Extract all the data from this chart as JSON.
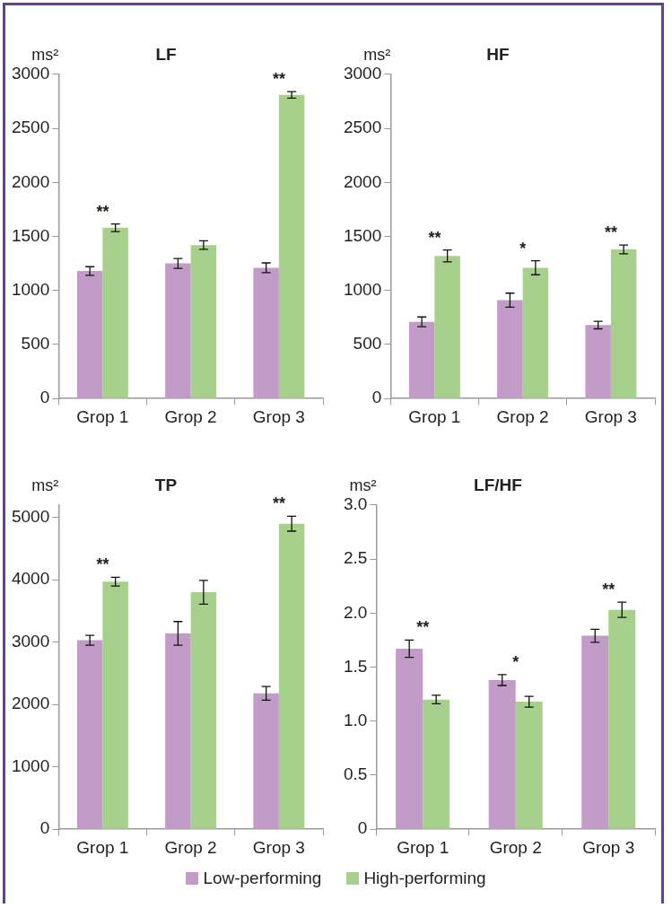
{
  "chart_data": [
    {
      "type": "bar",
      "title": "LF",
      "ylabel": "ms²",
      "categories": [
        "Grop 1",
        "Grop 2",
        "Grop 3"
      ],
      "ylim": [
        0,
        3000
      ],
      "yticks": [
        0,
        500,
        1000,
        1500,
        2000,
        2500,
        3000
      ],
      "legend": "bottom",
      "series": [
        {
          "name": "Low-performing",
          "color": "#c39bc8",
          "values": [
            1180,
            1250,
            1210
          ],
          "errors": [
            40,
            45,
            45
          ]
        },
        {
          "name": "High-performing",
          "color": "#a8d08d",
          "values": [
            1580,
            1420,
            2810
          ],
          "errors": [
            35,
            40,
            30
          ]
        }
      ],
      "annotations": [
        {
          "text": "**",
          "x": "Grop 1",
          "y": 1580
        },
        {
          "text": "**",
          "x": "Grop 3",
          "y": 2810
        }
      ]
    },
    {
      "type": "bar",
      "title": "HF",
      "ylabel": "ms²",
      "categories": [
        "Grop 1",
        "Grop 2",
        "Grop 3"
      ],
      "ylim": [
        0,
        3000
      ],
      "yticks": [
        0,
        500,
        1000,
        1500,
        2000,
        2500,
        3000
      ],
      "series": [
        {
          "color": "#c39bc8",
          "values": [
            710,
            910,
            680
          ],
          "errors": [
            45,
            65,
            35
          ]
        },
        {
          "color": "#a8d08d",
          "values": [
            1320,
            1210,
            1380
          ],
          "errors": [
            55,
            65,
            40
          ]
        }
      ],
      "annotations": [
        {
          "text": "**",
          "x": "Grop 1",
          "y": 1320
        },
        {
          "text": "*",
          "x": "Grop 2",
          "y": 1210
        },
        {
          "text": "**",
          "x": "Grop 3",
          "y": 1380
        }
      ]
    },
    {
      "type": "bar",
      "title": "TP",
      "ylabel": "ms²",
      "categories": [
        "Grop 1",
        "Grop 2",
        "Grop 3"
      ],
      "ylim": [
        0,
        5200
      ],
      "yticks": [
        0,
        1000,
        2000,
        3000,
        4000,
        5000
      ],
      "series": [
        {
          "color": "#c39bc8",
          "values": [
            3030,
            3140,
            2180
          ],
          "errors": [
            80,
            190,
            110
          ]
        },
        {
          "color": "#a8d08d",
          "values": [
            3970,
            3800,
            4900
          ],
          "errors": [
            70,
            190,
            120
          ]
        }
      ],
      "annotations": [
        {
          "text": "**",
          "x": "Grop 1",
          "y": 3970
        },
        {
          "text": "**",
          "x": "Grop 3",
          "y": 4900
        }
      ]
    },
    {
      "type": "bar",
      "title": "LF/HF",
      "ylabel": "ms²",
      "categories": [
        "Grop 1",
        "Grop 2",
        "Grop 3"
      ],
      "ylim": [
        0,
        3.0
      ],
      "yticks": [
        0,
        0.5,
        {
          "value": 1,
          "label": "1.0"
        },
        1.5,
        {
          "value": 2,
          "label": "2.0"
        },
        2.5,
        {
          "value": 3,
          "label": "3.0"
        }
      ],
      "series": [
        {
          "color": "#c39bc8",
          "values": [
            1.67,
            1.38,
            1.79
          ],
          "errors": [
            0.08,
            0.05,
            0.06
          ]
        },
        {
          "color": "#a8d08d",
          "values": [
            1.2,
            1.18,
            2.03
          ],
          "errors": [
            0.04,
            0.05,
            0.07
          ]
        }
      ],
      "annotations": [
        {
          "text": "**",
          "x": "Grop 1",
          "y": 1.67
        },
        {
          "text": "*",
          "x": "Grop 2",
          "y": 1.38
        },
        {
          "text": "**",
          "x": "Grop 3",
          "y": 2.03
        }
      ]
    }
  ]
}
